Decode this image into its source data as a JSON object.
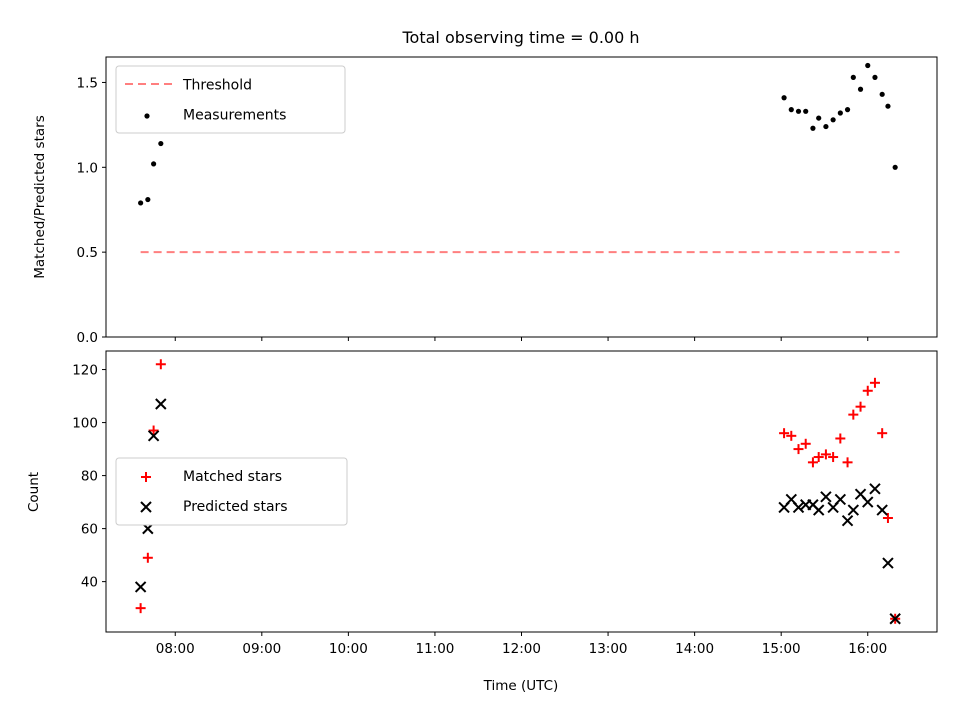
{
  "title": "Total observing time = 0.00 h",
  "xlabel": "Time (UTC)",
  "x_ticks": [
    "08:00",
    "09:00",
    "10:00",
    "11:00",
    "12:00",
    "13:00",
    "14:00",
    "15:00",
    "16:00"
  ],
  "colors": {
    "threshold": "#ff7f7f",
    "measurements": "#000000",
    "matched": "#ff0000",
    "predicted": "#000000"
  },
  "chart_data": [
    {
      "type": "scatter",
      "ylabel": "Matched/Predicted stars",
      "ylim": [
        0,
        1.65
      ],
      "xlim": [
        "07:12",
        "16:48"
      ],
      "y_ticks": [
        "0.0",
        "0.5",
        "1.0",
        "1.5"
      ],
      "legend_position": "top-left",
      "threshold": {
        "name": "Threshold",
        "value": 0.5,
        "x": [
          "07:36",
          "16:22"
        ]
      },
      "series": [
        {
          "name": "Measurements",
          "x": [
            "07:36",
            "07:41",
            "07:45",
            "07:50",
            "15:02",
            "15:07",
            "15:12",
            "15:17",
            "15:22",
            "15:26",
            "15:31",
            "15:36",
            "15:41",
            "15:46",
            "15:50",
            "15:55",
            "16:00",
            "16:05",
            "16:10",
            "16:14",
            "16:19"
          ],
          "y": [
            0.79,
            0.81,
            1.02,
            1.14,
            1.41,
            1.34,
            1.33,
            1.33,
            1.23,
            1.29,
            1.24,
            1.28,
            1.32,
            1.34,
            1.53,
            1.46,
            1.6,
            1.53,
            1.43,
            1.36,
            1.0
          ]
        }
      ]
    },
    {
      "type": "scatter",
      "ylabel": "Count",
      "ylim": [
        21,
        127
      ],
      "xlim": [
        "07:12",
        "16:48"
      ],
      "y_ticks": [
        "40",
        "60",
        "80",
        "100",
        "120"
      ],
      "legend_position": "center-left",
      "series": [
        {
          "name": "Matched stars",
          "marker": "plus",
          "x": [
            "07:36",
            "07:41",
            "07:45",
            "07:50",
            "15:02",
            "15:07",
            "15:12",
            "15:17",
            "15:22",
            "15:26",
            "15:31",
            "15:36",
            "15:41",
            "15:46",
            "15:50",
            "15:55",
            "16:00",
            "16:05",
            "16:10",
            "16:14",
            "16:19"
          ],
          "y": [
            30,
            49,
            97,
            122,
            96,
            95,
            90,
            92,
            85,
            87,
            88,
            87,
            94,
            85,
            103,
            106,
            112,
            115,
            96,
            64,
            26
          ]
        },
        {
          "name": "Predicted stars",
          "marker": "x",
          "x": [
            "07:36",
            "07:41",
            "07:45",
            "07:50",
            "15:02",
            "15:07",
            "15:12",
            "15:17",
            "15:22",
            "15:26",
            "15:31",
            "15:36",
            "15:41",
            "15:46",
            "15:50",
            "15:55",
            "16:00",
            "16:05",
            "16:10",
            "16:14",
            "16:19"
          ],
          "y": [
            38,
            60,
            95,
            107,
            68,
            71,
            68,
            69,
            69,
            67,
            72,
            68,
            71,
            63,
            67,
            73,
            70,
            75,
            67,
            47,
            26
          ]
        }
      ]
    }
  ]
}
